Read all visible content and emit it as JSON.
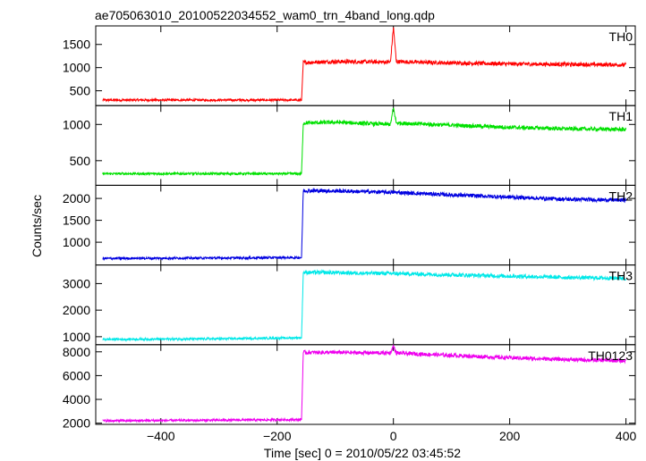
{
  "chart_data": {
    "type": "line",
    "title": "ae705063010_20100522034552_wam0_trn_4band_long.qdp",
    "xlabel": "Time [sec] 0 = 2010/05/22 03:45:52",
    "ylabel": "Counts/sec",
    "xlim": [
      -512,
      416
    ],
    "x_ticks": [
      -400,
      -200,
      0,
      200,
      400
    ],
    "x_tick_labels": [
      "−400",
      "−200",
      "0",
      "200",
      "400"
    ],
    "grid": false,
    "panels": [
      {
        "name": "TH0",
        "color": "#ff0000",
        "ylim": [
          180,
          1900
        ],
        "y_ticks": [
          500,
          1000,
          1500
        ],
        "points": [
          [
            -500,
            300
          ],
          [
            -300,
            300
          ],
          [
            -158,
            300
          ],
          [
            -155,
            1110
          ],
          [
            -100,
            1130
          ],
          [
            -5,
            1120
          ],
          [
            0,
            1880
          ],
          [
            5,
            1130
          ],
          [
            100,
            1100
          ],
          [
            200,
            1080
          ],
          [
            300,
            1070
          ],
          [
            400,
            1060
          ]
        ]
      },
      {
        "name": "TH1",
        "color": "#00e000",
        "ylim": [
          160,
          1260
        ],
        "y_ticks": [
          500,
          1000
        ],
        "points": [
          [
            -500,
            320
          ],
          [
            -300,
            320
          ],
          [
            -158,
            320
          ],
          [
            -155,
            1020
          ],
          [
            -100,
            1030
          ],
          [
            -5,
            1000
          ],
          [
            0,
            1230
          ],
          [
            5,
            1020
          ],
          [
            100,
            990
          ],
          [
            200,
            960
          ],
          [
            300,
            940
          ],
          [
            400,
            930
          ]
        ]
      },
      {
        "name": "TH2",
        "color": "#0000e0",
        "ylim": [
          480,
          2300
        ],
        "y_ticks": [
          1000,
          1500,
          2000
        ],
        "points": [
          [
            -500,
            630
          ],
          [
            -300,
            640
          ],
          [
            -158,
            650
          ],
          [
            -155,
            2180
          ],
          [
            -100,
            2170
          ],
          [
            0,
            2140
          ],
          [
            100,
            2080
          ],
          [
            200,
            2030
          ],
          [
            300,
            1980
          ],
          [
            400,
            1960
          ]
        ]
      },
      {
        "name": "TH3",
        "color": "#00e8e8",
        "ylim": [
          700,
          3700
        ],
        "y_ticks": [
          1000,
          2000,
          3000
        ],
        "points": [
          [
            -500,
            900
          ],
          [
            -300,
            920
          ],
          [
            -158,
            960
          ],
          [
            -155,
            3420
          ],
          [
            -100,
            3410
          ],
          [
            0,
            3380
          ],
          [
            100,
            3330
          ],
          [
            200,
            3280
          ],
          [
            300,
            3230
          ],
          [
            400,
            3200
          ]
        ]
      },
      {
        "name": "TH0123",
        "color": "#ee00ee",
        "ylim": [
          1900,
          8600
        ],
        "y_ticks": [
          2000,
          4000,
          6000,
          8000
        ],
        "points": [
          [
            -500,
            2200
          ],
          [
            -300,
            2250
          ],
          [
            -158,
            2300
          ],
          [
            -155,
            7950
          ],
          [
            -100,
            7950
          ],
          [
            -5,
            7900
          ],
          [
            0,
            8500
          ],
          [
            5,
            7900
          ],
          [
            100,
            7700
          ],
          [
            200,
            7500
          ],
          [
            300,
            7350
          ],
          [
            400,
            7250
          ]
        ]
      }
    ]
  }
}
